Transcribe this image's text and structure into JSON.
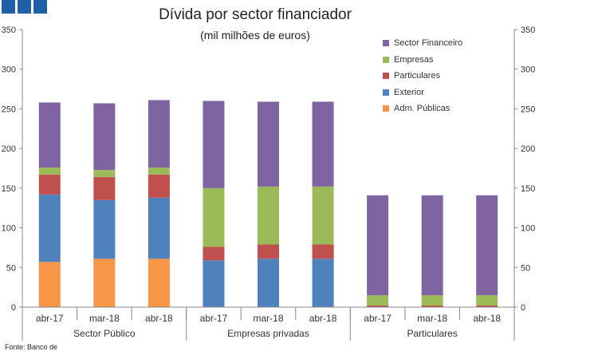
{
  "logo": {
    "color": "#1f5fa8"
  },
  "source": "Fonte: Banco de",
  "chart_data": {
    "type": "bar",
    "stacked": true,
    "title": "Dívida por sector financiador",
    "subtitle": "(mil milhões de euros)",
    "categories": [
      "abr-17",
      "mar-18",
      "abr-18",
      "abr-17",
      "mar-18",
      "abr-18",
      "abr-17",
      "mar-18",
      "abr-18"
    ],
    "groups": [
      {
        "label": "Sector Público",
        "count": 3
      },
      {
        "label": "Empresas privadas",
        "count": 3
      },
      {
        "label": "Particulares",
        "count": 3
      }
    ],
    "series": [
      {
        "name": "Adm. Públicas",
        "color": "#f79646",
        "values": [
          57,
          61,
          61,
          0,
          0,
          0,
          0,
          0,
          0
        ]
      },
      {
        "name": "Exterior",
        "color": "#4f81bd",
        "values": [
          85,
          74,
          77,
          59,
          61,
          61,
          0,
          0,
          0
        ]
      },
      {
        "name": "Particulares",
        "color": "#c0504d",
        "values": [
          25,
          29,
          29,
          17,
          18,
          18,
          2,
          2,
          2
        ]
      },
      {
        "name": "Empresas",
        "color": "#9bbb59",
        "values": [
          9,
          9,
          9,
          74,
          73,
          73,
          13,
          13,
          13
        ]
      },
      {
        "name": "Sector Financeiro",
        "color": "#8064a2",
        "values": [
          82,
          84,
          85,
          110,
          107,
          107,
          126,
          126,
          126
        ]
      }
    ],
    "ylim": [
      0,
      350
    ],
    "yticks": [
      0,
      50,
      100,
      150,
      200,
      250,
      300,
      350
    ],
    "y_axis_both_sides": true,
    "grid": false,
    "legend_position": "top-right"
  }
}
